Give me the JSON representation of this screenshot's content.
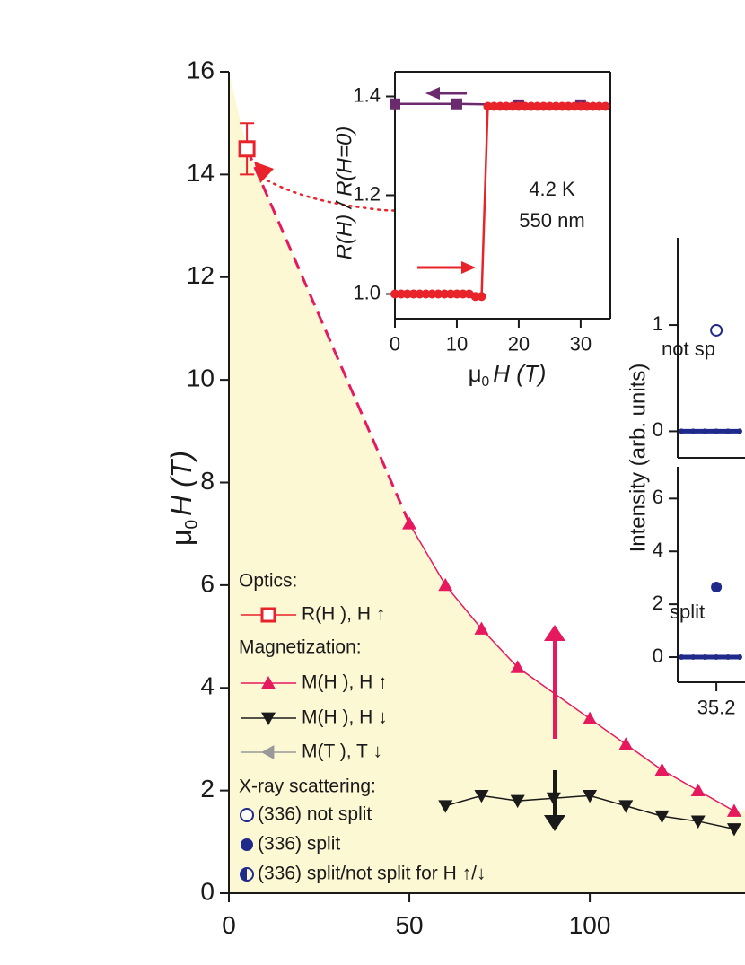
{
  "chart_data": [
    {
      "type": "line",
      "ylabel": [
        "μ",
        "0",
        "H (T)"
      ],
      "xlim": [
        0,
        143
      ],
      "ylim": [
        0,
        16
      ],
      "xticks": [
        0,
        50,
        100
      ],
      "yticks": [
        0,
        2,
        4,
        6,
        8,
        10,
        12,
        14,
        16
      ],
      "fill_color": "#fdf8d4",
      "series": [
        {
          "name": "R(H ), H ↑",
          "color": "#e8232a",
          "marker": "open-square",
          "x": [
            5
          ],
          "values": [
            14.5
          ],
          "errors": [
            0.5
          ]
        },
        {
          "name": "M(H ), H ↑",
          "color": "#e6195f",
          "marker": "triangle-up",
          "x": [
            50,
            60,
            70,
            80,
            100,
            110,
            120,
            130,
            140
          ],
          "values": [
            7.2,
            6.0,
            5.15,
            4.4,
            3.4,
            2.9,
            2.4,
            2.0,
            1.6
          ]
        },
        {
          "name": "M(H ), H ↓",
          "color": "#1a1a1a",
          "marker": "triangle-down",
          "x": [
            60,
            70,
            80,
            90,
            100,
            110,
            120,
            130,
            140
          ],
          "values": [
            1.7,
            1.9,
            1.8,
            1.85,
            1.9,
            1.7,
            1.5,
            1.4,
            1.25
          ]
        },
        {
          "name": "M(T ), T ↓",
          "color": "#999999",
          "marker": "triangle-left",
          "x": [],
          "values": []
        }
      ],
      "legend_headings": [
        "Optics:",
        "Magnetization:",
        "X-ray scattering:"
      ],
      "xray_legend": [
        {
          "text": "(336) not split",
          "marker": "open-circle",
          "color": "#1f2a8a"
        },
        {
          "text": "(336) split",
          "marker": "circle",
          "color": "#1f2a8a"
        },
        {
          "text": "(336) split/not split for H ↑/↓",
          "marker": "half-circle",
          "color": "#1f2a8a"
        }
      ]
    },
    {
      "type": "line",
      "xlabel": [
        "μ",
        "0",
        "H (T)"
      ],
      "ylabel": "R(H) / R(H=0)",
      "xlim": [
        0,
        34.8
      ],
      "ylim": [
        0.95,
        1.45
      ],
      "xticks": [
        0,
        10,
        20,
        30
      ],
      "yticks": [
        {
          "value": 1.0,
          "label": "1.0"
        },
        {
          "value": 1.2,
          "label": "1.2"
        },
        {
          "value": 1.4,
          "label": "1.4"
        }
      ],
      "annotations": [
        "4.2 K",
        "550 nm"
      ],
      "series": [
        {
          "color": "#6b2a6e",
          "marker": "square",
          "x": [
            0,
            10,
            20,
            30
          ],
          "values": [
            1.385,
            1.385,
            1.383,
            1.383
          ]
        },
        {
          "color": "#e8232a",
          "marker": "circle",
          "x": [
            0,
            1,
            2,
            3,
            4,
            5,
            6,
            7,
            8,
            9,
            10,
            11,
            12,
            13,
            14,
            15,
            16,
            17,
            18,
            19,
            20,
            21,
            22,
            23,
            24,
            25,
            26,
            27,
            28,
            29,
            30,
            31,
            32,
            33,
            34
          ],
          "values": [
            1.0,
            1.0,
            1.0,
            1.0,
            1.0,
            1.0,
            1.0,
            1.0,
            1.0,
            1.0,
            1.0,
            1.0,
            1.0,
            0.995,
            0.995,
            1.38,
            1.38,
            1.38,
            1.38,
            1.38,
            1.38,
            1.38,
            1.38,
            1.38,
            1.38,
            1.38,
            1.38,
            1.38,
            1.38,
            1.38,
            1.38,
            1.38,
            1.38,
            1.38,
            1.38
          ]
        }
      ]
    },
    {
      "type": "scatter",
      "xlim": [
        35.1,
        35.274
      ],
      "ylim": [
        -0.25,
        1.82
      ],
      "yticks": [
        0,
        1
      ],
      "annotations": [
        "not sp"
      ],
      "series": [
        {
          "color": "#1f2a8a",
          "marker": "dot",
          "x": [
            35.11,
            35.14,
            35.17,
            35.2,
            35.23,
            35.26
          ],
          "values": [
            0,
            0,
            0,
            0,
            0,
            0
          ]
        },
        {
          "color": "#1f2a8a",
          "marker": "open-circle",
          "x": [
            35.2
          ],
          "values": [
            0.95
          ]
        }
      ]
    },
    {
      "type": "scatter",
      "ylabel": "Intensity (arb. units)",
      "xlim": [
        35.1,
        35.274
      ],
      "ylim": [
        -0.95,
        7.2
      ],
      "xticks": [
        35.2
      ],
      "yticks": [
        0,
        2,
        4,
        6
      ],
      "annotations": [
        "split"
      ],
      "series": [
        {
          "color": "#1f2a8a",
          "marker": "dot",
          "x": [
            35.11,
            35.14,
            35.17,
            35.2,
            35.23,
            35.26
          ],
          "values": [
            0,
            0,
            0,
            0,
            0,
            0
          ]
        },
        {
          "color": "#1f2a8a",
          "marker": "circle",
          "x": [
            35.2
          ],
          "values": [
            2.65
          ]
        }
      ]
    }
  ]
}
